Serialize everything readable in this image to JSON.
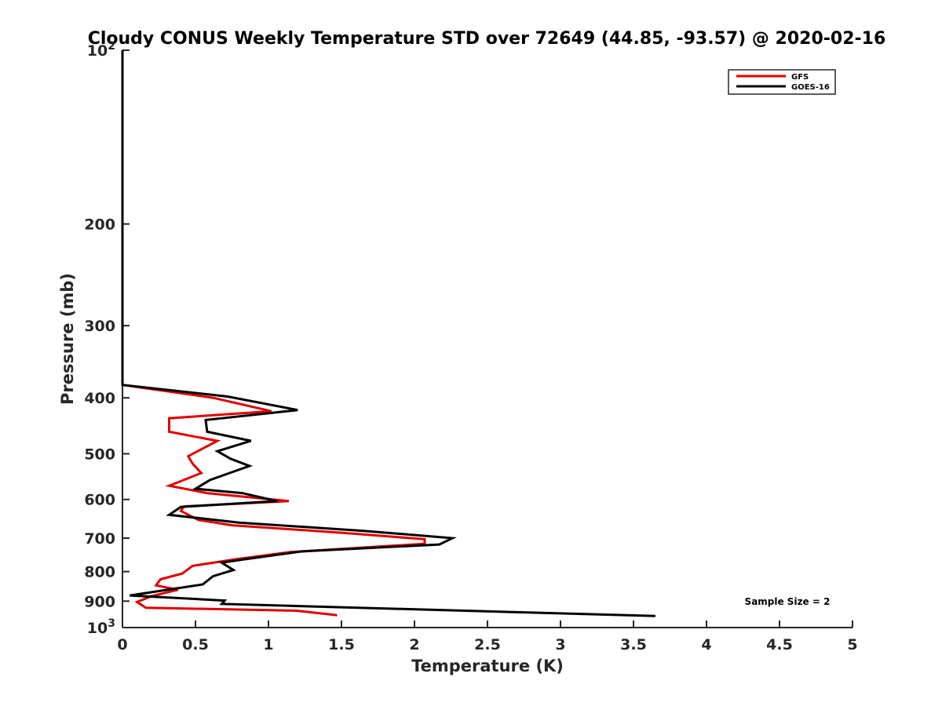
{
  "chart_data": {
    "type": "line",
    "title": "Cloudy CONUS Weekly Temperature STD over 72649 (44.85, -93.57) @ 2020-02-16",
    "xlabel": "Temperature (K)",
    "ylabel": "Pressure (mb)",
    "xlim": [
      0,
      5
    ],
    "ylim": [
      100,
      1000
    ],
    "yscale": "log",
    "y_reversed": true,
    "x_ticks": [
      0,
      0.5,
      1,
      1.5,
      2,
      2.5,
      3,
      3.5,
      4,
      4.5,
      5
    ],
    "x_tick_labels": [
      "0",
      "0.5",
      "1",
      "1.5",
      "2",
      "2.5",
      "3",
      "3.5",
      "4",
      "4.5",
      "5"
    ],
    "y_ticks": [
      {
        "value": 100,
        "base": "10",
        "exp": "2"
      },
      {
        "value": 200,
        "label": "200"
      },
      {
        "value": 300,
        "label": "300"
      },
      {
        "value": 400,
        "label": "400"
      },
      {
        "value": 500,
        "label": "500"
      },
      {
        "value": 600,
        "label": "600"
      },
      {
        "value": 700,
        "label": "700"
      },
      {
        "value": 800,
        "label": "800"
      },
      {
        "value": 900,
        "label": "900"
      },
      {
        "value": 1000,
        "base": "10",
        "exp": "3"
      }
    ],
    "grid": false,
    "legend_position": "top-right",
    "annotation": "Sample Size = 2",
    "series": [
      {
        "name": "GFS",
        "color": "#e00000",
        "points": [
          [
            0,
            100
          ],
          [
            0,
            380
          ],
          [
            0.62,
            400
          ],
          [
            1.02,
            422
          ],
          [
            0.32,
            434
          ],
          [
            0.32,
            458
          ],
          [
            0.65,
            475
          ],
          [
            0.45,
            505
          ],
          [
            0.48,
            520
          ],
          [
            0.54,
            540
          ],
          [
            0.32,
            568
          ],
          [
            0.58,
            585
          ],
          [
            1.14,
            604
          ],
          [
            0.42,
            617
          ],
          [
            0.4,
            628
          ],
          [
            0.52,
            651
          ],
          [
            0.75,
            665
          ],
          [
            1.5,
            685
          ],
          [
            2.07,
            703
          ],
          [
            2.07,
            716
          ],
          [
            1.15,
            740
          ],
          [
            0.77,
            762
          ],
          [
            0.48,
            782
          ],
          [
            0.41,
            806
          ],
          [
            0.26,
            825
          ],
          [
            0.23,
            845
          ],
          [
            0.38,
            860
          ],
          [
            0.2,
            882
          ],
          [
            0.1,
            903
          ],
          [
            0.16,
            924
          ],
          [
            1.19,
            935
          ],
          [
            1.47,
            952
          ]
        ]
      },
      {
        "name": "GOES-16",
        "color": "#000000",
        "points": [
          [
            0,
            100
          ],
          [
            0,
            380
          ],
          [
            0.72,
            398
          ],
          [
            1.2,
            420
          ],
          [
            0.57,
            437
          ],
          [
            0.58,
            458
          ],
          [
            0.88,
            475
          ],
          [
            0.65,
            495
          ],
          [
            0.74,
            510
          ],
          [
            0.87,
            525
          ],
          [
            0.6,
            555
          ],
          [
            0.5,
            575
          ],
          [
            0.82,
            585
          ],
          [
            1.06,
            604
          ],
          [
            0.4,
            618
          ],
          [
            0.32,
            638
          ],
          [
            0.8,
            658
          ],
          [
            1.65,
            680
          ],
          [
            2.26,
            700
          ],
          [
            2.17,
            718
          ],
          [
            1.23,
            738
          ],
          [
            0.83,
            762
          ],
          [
            0.68,
            772
          ],
          [
            0.76,
            795
          ],
          [
            0.62,
            815
          ],
          [
            0.55,
            842
          ],
          [
            0.05,
            880
          ],
          [
            0.7,
            898
          ],
          [
            0.68,
            910
          ],
          [
            3.65,
            955
          ]
        ]
      }
    ]
  }
}
